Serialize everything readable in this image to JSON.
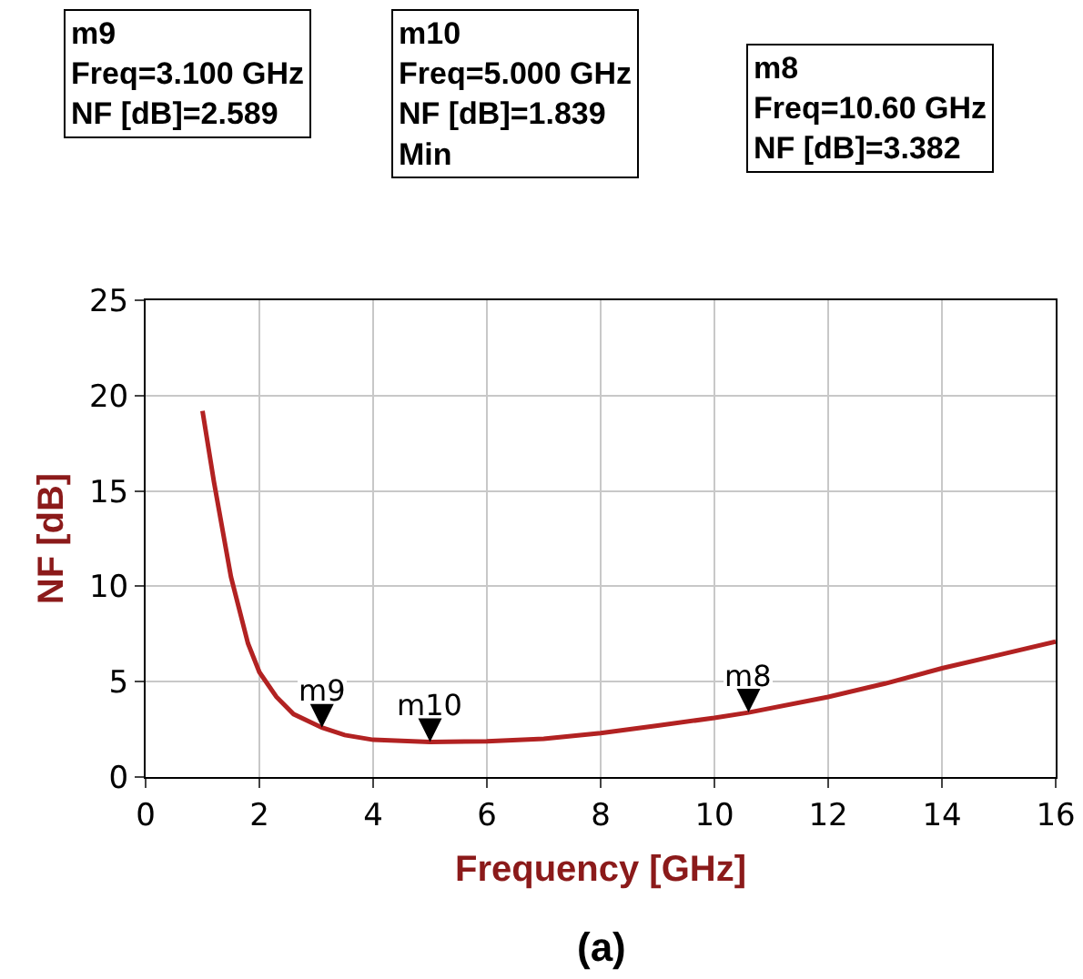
{
  "chart_data": {
    "type": "line",
    "xlabel": "Frequency [GHz]",
    "ylabel": "NF [dB]",
    "x": [
      1,
      1.2,
      1.5,
      1.8,
      2,
      2.3,
      2.6,
      3.1,
      3.5,
      4,
      5,
      6,
      7,
      8,
      9,
      10,
      10.6,
      12,
      13,
      14,
      15,
      16
    ],
    "series": [
      {
        "color": "#b22222",
        "values": [
          19.2,
          15.5,
          10.5,
          7,
          5.5,
          4.2,
          3.3,
          2.589,
          2.2,
          1.95,
          1.839,
          1.87,
          2.0,
          2.3,
          2.7,
          3.1,
          3.382,
          4.2,
          4.9,
          5.7,
          6.4,
          7.1
        ]
      }
    ],
    "xlim": [
      0,
      16
    ],
    "xticks": [
      0,
      2,
      4,
      6,
      8,
      10,
      12,
      14,
      16
    ],
    "ylim": [
      0,
      25
    ],
    "yticks": [
      0,
      5,
      10,
      15,
      20,
      25
    ],
    "grid": true,
    "marker": "none",
    "line_style": "solid",
    "annotations": [
      {
        "text": "m9",
        "x": 3.1,
        "y": 2.589
      },
      {
        "text": "m10",
        "x": 5,
        "y": 1.839
      },
      {
        "text": "m8",
        "x": 10.6,
        "y": 3.382
      },
      "m9\nFreq=3.100 GHz\nNF [dB]=2.589",
      "m10\nFreq=5.000 GHz\nNF [dB]=1.839\nMin",
      "m8\nFreq=10.60 GHz\nNF [dB]=3.382",
      "(a)"
    ]
  }
}
